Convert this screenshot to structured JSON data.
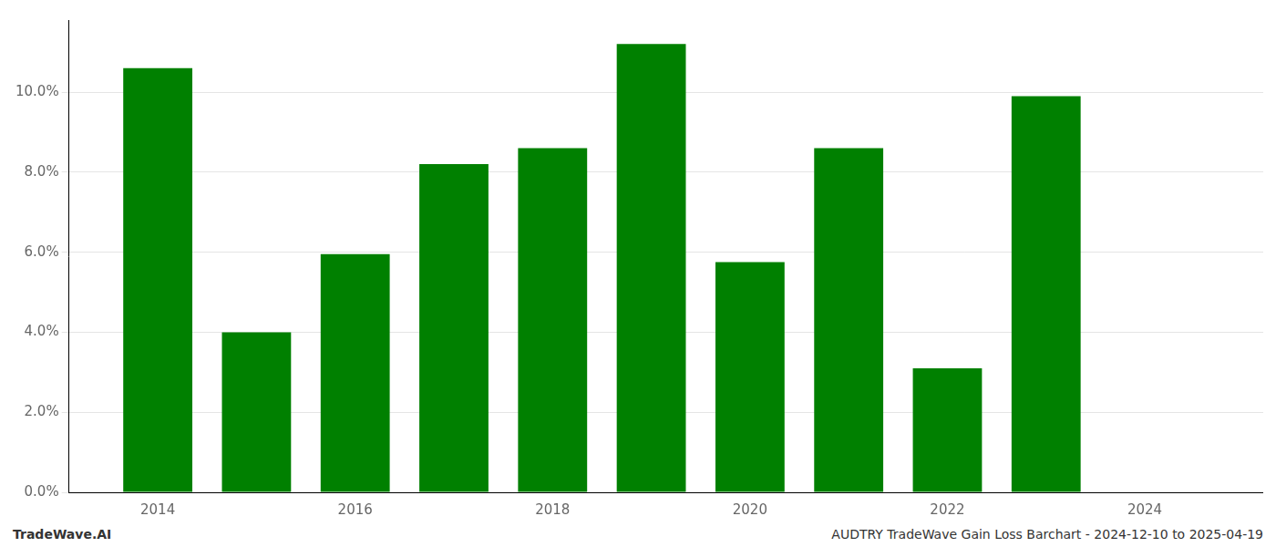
{
  "chart_data": {
    "type": "bar",
    "x": [
      2014,
      2015,
      2016,
      2017,
      2018,
      2019,
      2020,
      2021,
      2022,
      2023
    ],
    "values": [
      0.106,
      0.04,
      0.0595,
      0.082,
      0.086,
      0.112,
      0.0575,
      0.086,
      0.031,
      0.099
    ],
    "color": "#008000",
    "xlim": [
      2013.1,
      2025.2
    ],
    "xticks": [
      2014,
      2016,
      2018,
      2020,
      2022,
      2024
    ],
    "ylim": [
      0,
      0.118
    ],
    "yticks": [
      {
        "value": 0.0,
        "label": "0.0%"
      },
      {
        "value": 0.02,
        "label": "2.0%"
      },
      {
        "value": 0.04,
        "label": "4.0%"
      },
      {
        "value": 0.06,
        "label": "6.0%"
      },
      {
        "value": 0.08,
        "label": "8.0%"
      },
      {
        "value": 0.1,
        "label": "10.0%"
      }
    ],
    "grid": "y",
    "annotations": [
      "TradeWave.AI",
      "AUDTRY TradeWave Gain Loss Barchart - 2024-12-10 to 2025-04-19"
    ]
  }
}
